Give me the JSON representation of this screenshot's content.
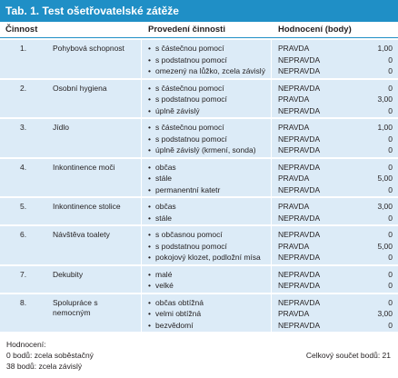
{
  "title": "Tab. 1. Test ošetřovatelské zátěže",
  "headers": {
    "activity": "Činnost",
    "performed": "Provedení činnosti",
    "evaluation": "Hodnocení (body)"
  },
  "rows": [
    {
      "num": "1.",
      "activity": "Pohybová schopnost",
      "items": [
        {
          "desc": "s částečnou pomocí",
          "eval": "PRAVDA",
          "score": "1,00"
        },
        {
          "desc": "s podstatnou pomocí",
          "eval": "NEPRAVDA",
          "score": "0"
        },
        {
          "desc": "omezený na lůžko, zcela závislý",
          "eval": "NEPRAVDA",
          "score": "0"
        }
      ]
    },
    {
      "num": "2.",
      "activity": "Osobní hygiena",
      "items": [
        {
          "desc": "s částečnou pomocí",
          "eval": "NEPRAVDA",
          "score": "0"
        },
        {
          "desc": "s podstatnou pomocí",
          "eval": "PRAVDA",
          "score": "3,00"
        },
        {
          "desc": "úplně závislý",
          "eval": "NEPRAVDA",
          "score": "0"
        }
      ]
    },
    {
      "num": "3.",
      "activity": "Jídlo",
      "items": [
        {
          "desc": "s částečnou pomocí",
          "eval": "PRAVDA",
          "score": "1,00"
        },
        {
          "desc": "s podstatnou pomocí",
          "eval": "NEPRAVDA",
          "score": "0"
        },
        {
          "desc": "úplně závislý (krmení, sonda)",
          "eval": "NEPRAVDA",
          "score": "0"
        }
      ]
    },
    {
      "num": "4.",
      "activity": "Inkontinence moči",
      "items": [
        {
          "desc": "občas",
          "eval": "NEPRAVDA",
          "score": "0"
        },
        {
          "desc": "stále",
          "eval": "PRAVDA",
          "score": "5,00"
        },
        {
          "desc": "permanentní katetr",
          "eval": "NEPRAVDA",
          "score": "0"
        }
      ]
    },
    {
      "num": "5.",
      "activity": "Inkontinence stolice",
      "items": [
        {
          "desc": "občas",
          "eval": "PRAVDA",
          "score": "3,00"
        },
        {
          "desc": "stále",
          "eval": "NEPRAVDA",
          "score": "0"
        }
      ]
    },
    {
      "num": "6.",
      "activity": "Návštěva toalety",
      "items": [
        {
          "desc": "s občasnou pomocí",
          "eval": "NEPRAVDA",
          "score": "0"
        },
        {
          "desc": "s podstatnou pomocí",
          "eval": "PRAVDA",
          "score": "5,00"
        },
        {
          "desc": "pokojový klozet, podložní mísa",
          "eval": "NEPRAVDA",
          "score": "0"
        }
      ]
    },
    {
      "num": "7.",
      "activity": "Dekubity",
      "items": [
        {
          "desc": "malé",
          "eval": "NEPRAVDA",
          "score": "0"
        },
        {
          "desc": "velké",
          "eval": "NEPRAVDA",
          "score": "0"
        }
      ]
    },
    {
      "num": "8.",
      "activity": "Spolupráce s nemocným",
      "items": [
        {
          "desc": "občas obtížná",
          "eval": "NEPRAVDA",
          "score": "0"
        },
        {
          "desc": "velmi obtížná",
          "eval": "PRAVDA",
          "score": "3,00"
        },
        {
          "desc": "bezvědomí",
          "eval": "NEPRAVDA",
          "score": "0"
        }
      ]
    }
  ],
  "legend": {
    "heading": "Hodnocení:",
    "line1": "0 bodů: zcela soběstačný",
    "line2": "38 bodů: zcela závislý",
    "total": "Celkový součet bodů: 21"
  },
  "colors": {
    "title_bar": "#1f8fc6",
    "row_fill": "#dcebf7"
  }
}
